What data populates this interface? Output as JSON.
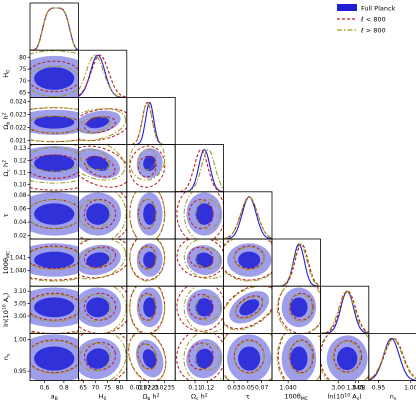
{
  "chart_data": {
    "type": "corner",
    "parameters": [
      {
        "id": "aB",
        "axis_label": "a_B",
        "row_label": "",
        "range": [
          0.45,
          0.95
        ],
        "ticks": [
          0.6,
          0.8
        ],
        "tick_labels": [
          "0.6",
          "0.8"
        ],
        "mean": 0.7,
        "sd": 0.13
      },
      {
        "id": "H0",
        "axis_label": "H_0",
        "row_label": "H_0",
        "range": [
          63,
          83
        ],
        "ticks": [
          65,
          70,
          75,
          80
        ],
        "tick_labels": [
          "65",
          "70",
          "75",
          "80"
        ],
        "mean": 71.0,
        "sd": 3.0
      },
      {
        "id": "omb",
        "axis_label": "Ω_b h^2",
        "row_label": "Ω_b h^2",
        "range": [
          0.0207,
          0.0243
        ],
        "ticks": [
          0.0217,
          0.0223,
          0.0235
        ],
        "tick_labels": [
          "0.0217",
          "0.0223",
          "0.0235"
        ],
        "y_ticks": [
          0.021,
          0.022,
          0.023,
          0.024
        ],
        "y_tick_labels": [
          "0.021",
          "0.022",
          "0.023",
          "0.024"
        ],
        "mean": 0.0224,
        "sd": 0.0003
      },
      {
        "id": "omc",
        "axis_label": "Ω_c h^2",
        "row_label": "Ω_c h^2",
        "range": [
          0.094,
          0.133
        ],
        "ticks": [
          0.11,
          0.12
        ],
        "tick_labels": [
          "0.11",
          "0.12"
        ],
        "y_ticks": [
          0.1,
          0.11,
          0.12,
          0.13
        ],
        "y_tick_labels": [
          "0.10",
          "0.11",
          "0.12",
          "0.13"
        ],
        "mean": 0.1175,
        "sd": 0.0045
      },
      {
        "id": "tau",
        "axis_label": "τ",
        "row_label": "τ",
        "range": [
          0.015,
          0.085
        ],
        "ticks": [
          0.03,
          0.05,
          0.07
        ],
        "tick_labels": [
          "0.03",
          "0.05",
          "0.07"
        ],
        "y_ticks": [
          0.02,
          0.04,
          0.06,
          0.08
        ],
        "y_tick_labels": [
          "0.02",
          "0.04",
          "0.06",
          "0.08"
        ],
        "mean": 0.052,
        "sd": 0.01
      },
      {
        "id": "theta",
        "axis_label": "100θ_MC",
        "row_label": "100θ_MC",
        "range": [
          1.0388,
          1.0424
        ],
        "ticks": [
          1.04,
          1.045
        ],
        "tick_labels": [
          "1.040",
          "1.045"
        ],
        "y_ticks": [
          1.04,
          1.041
        ],
        "y_tick_labels": [
          "1.040",
          "1.041"
        ],
        "mean": 1.0408,
        "sd": 0.0004
      },
      {
        "id": "As",
        "axis_label": "ln(10^10 A_s)",
        "row_label": "ln(10^10 A_s)",
        "range": [
          2.93,
          3.12
        ],
        "ticks": [
          3.0,
          3.08
        ],
        "tick_labels": [
          "3.00",
          "3.08"
        ],
        "y_ticks": [
          3.0,
          3.05,
          3.1
        ],
        "y_tick_labels": [
          "3.00",
          "3.05",
          "3.10"
        ],
        "mean": 3.035,
        "sd": 0.025
      },
      {
        "id": "ns",
        "axis_label": "n_s",
        "row_label": "n_s",
        "range": [
          0.935,
          1.01
        ],
        "ticks": [
          0.95,
          1.0
        ],
        "tick_labels": [
          "0.95",
          "1.00"
        ],
        "y_ticks": [
          0.95,
          1.0
        ],
        "y_tick_labels": [
          "0.95",
          "1.00"
        ],
        "mean": 0.97,
        "sd": 0.012
      }
    ],
    "series": [
      {
        "name": "Full Planck",
        "color": "#1f1fd6",
        "style": "filled",
        "shift": [
          0,
          0,
          0,
          0,
          0,
          0,
          0,
          0
        ]
      },
      {
        "name": "ℓ < 800",
        "color": "#b81c1c",
        "style": "dashed",
        "shift": [
          0,
          0.3,
          -0.6,
          -0.6,
          0,
          0.5,
          0.1,
          0.3
        ]
      },
      {
        "name": "ℓ > 800",
        "color": "#9c9c1c",
        "style": "dashdot",
        "shift": [
          0,
          -0.4,
          -0.6,
          0.7,
          0,
          0.3,
          -0.1,
          0.2
        ]
      }
    ],
    "fill_colors": [
      "#2b2bd8",
      "#8d8de8"
    ],
    "legend_position": "top-right"
  }
}
